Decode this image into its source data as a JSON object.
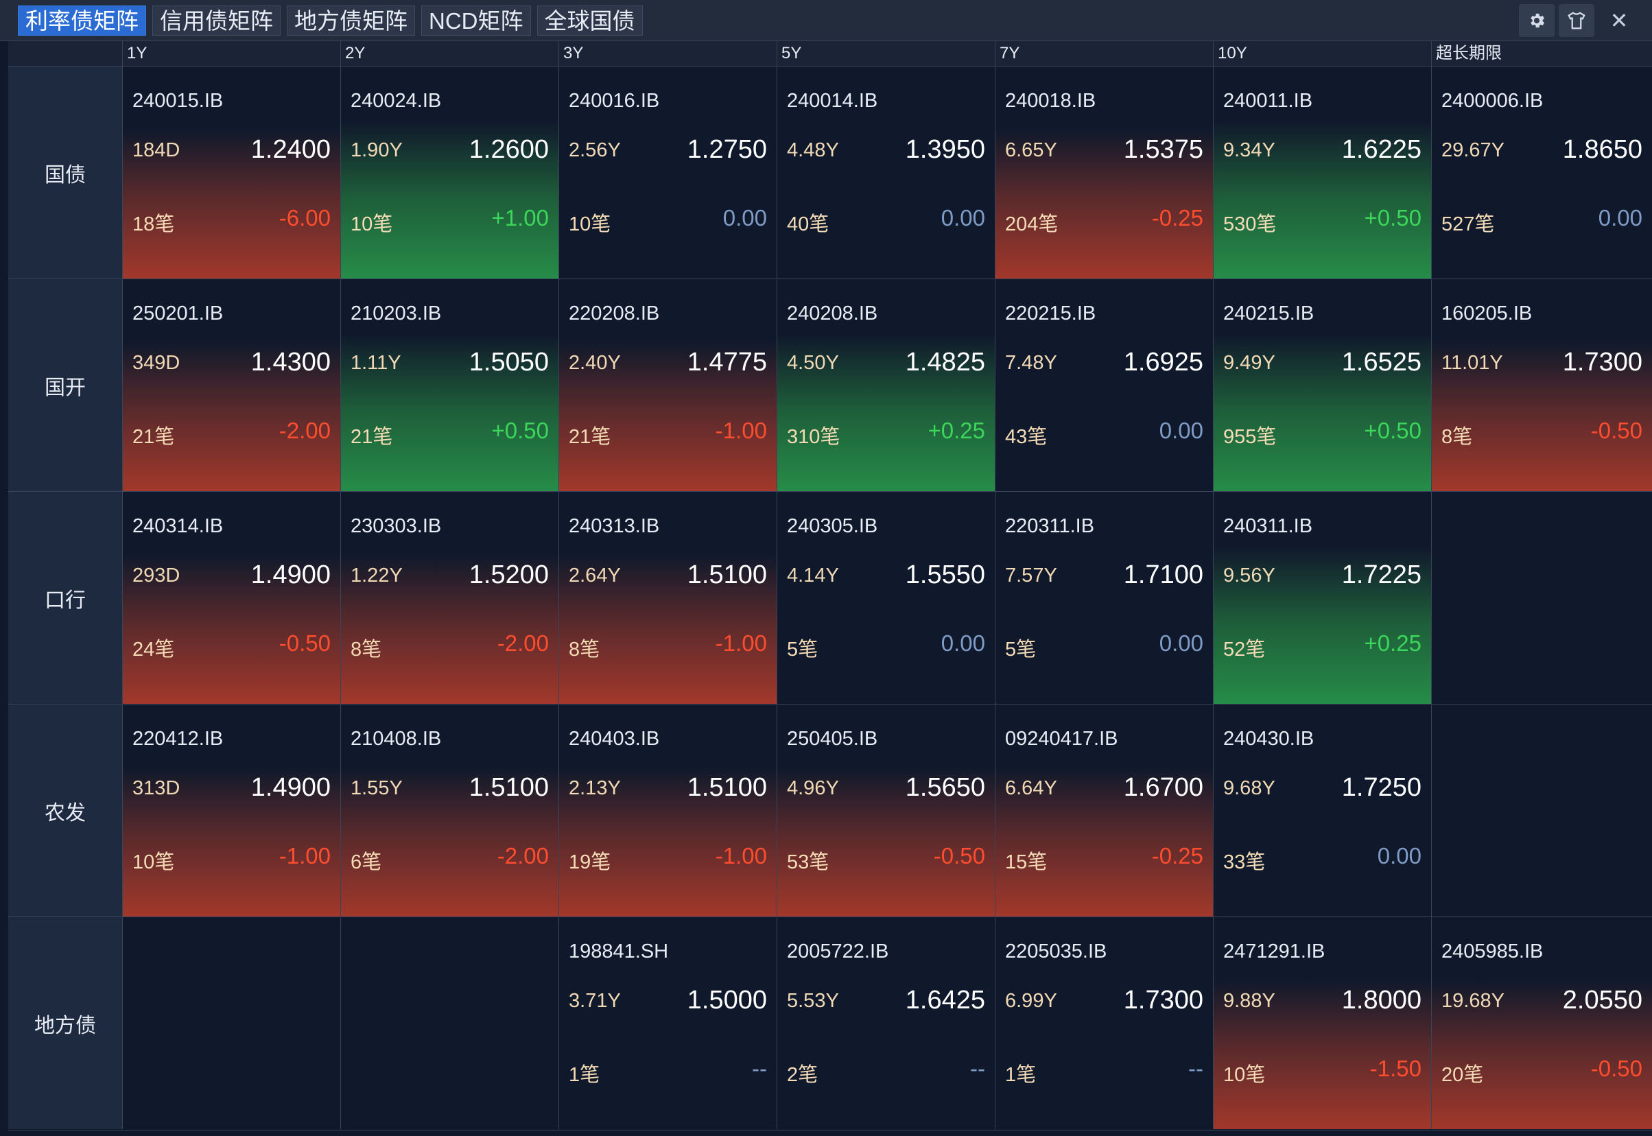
{
  "tabs": [
    {
      "label": "利率债矩阵",
      "active": true
    },
    {
      "label": "信用债矩阵",
      "active": false
    },
    {
      "label": "地方债矩阵",
      "active": false
    },
    {
      "label": "NCD矩阵",
      "active": false
    },
    {
      "label": "全球国债",
      "active": false
    }
  ],
  "window_controls": {
    "settings_icon": "gear-icon",
    "theme_icon": "shirt-icon",
    "close_icon": "close-icon",
    "close_glyph": "✕"
  },
  "columns": [
    "1Y",
    "2Y",
    "3Y",
    "5Y",
    "7Y",
    "10Y",
    "超长期限"
  ],
  "colors": {
    "accent": "#2b6cd4",
    "down": "#ff4d2e",
    "up": "#3bd65a",
    "flat": "#7f9cc7",
    "cell_red": "#a2382b",
    "cell_green": "#268c48"
  },
  "rows": [
    {
      "label": "国债",
      "cells": [
        {
          "code": "240015.IB",
          "term": "184D",
          "yield": "1.2400",
          "count": "18笔",
          "change": "-6.00",
          "trend": "red"
        },
        {
          "code": "240024.IB",
          "term": "1.90Y",
          "yield": "1.2600",
          "count": "10笔",
          "change": "+1.00",
          "trend": "green"
        },
        {
          "code": "240016.IB",
          "term": "2.56Y",
          "yield": "1.2750",
          "count": "10笔",
          "change": "0.00",
          "trend": "flat"
        },
        {
          "code": "240014.IB",
          "term": "4.48Y",
          "yield": "1.3950",
          "count": "40笔",
          "change": "0.00",
          "trend": "flat"
        },
        {
          "code": "240018.IB",
          "term": "6.65Y",
          "yield": "1.5375",
          "count": "204笔",
          "change": "-0.25",
          "trend": "red"
        },
        {
          "code": "240011.IB",
          "term": "9.34Y",
          "yield": "1.6225",
          "count": "530笔",
          "change": "+0.50",
          "trend": "green"
        },
        {
          "code": "2400006.IB",
          "term": "29.67Y",
          "yield": "1.8650",
          "count": "527笔",
          "change": "0.00",
          "trend": "flat"
        }
      ]
    },
    {
      "label": "国开",
      "cells": [
        {
          "code": "250201.IB",
          "term": "349D",
          "yield": "1.4300",
          "count": "21笔",
          "change": "-2.00",
          "trend": "red"
        },
        {
          "code": "210203.IB",
          "term": "1.11Y",
          "yield": "1.5050",
          "count": "21笔",
          "change": "+0.50",
          "trend": "green"
        },
        {
          "code": "220208.IB",
          "term": "2.40Y",
          "yield": "1.4775",
          "count": "21笔",
          "change": "-1.00",
          "trend": "red"
        },
        {
          "code": "240208.IB",
          "term": "4.50Y",
          "yield": "1.4825",
          "count": "310笔",
          "change": "+0.25",
          "trend": "green"
        },
        {
          "code": "220215.IB",
          "term": "7.48Y",
          "yield": "1.6925",
          "count": "43笔",
          "change": "0.00",
          "trend": "flat"
        },
        {
          "code": "240215.IB",
          "term": "9.49Y",
          "yield": "1.6525",
          "count": "955笔",
          "change": "+0.50",
          "trend": "green"
        },
        {
          "code": "160205.IB",
          "term": "11.01Y",
          "yield": "1.7300",
          "count": "8笔",
          "change": "-0.50",
          "trend": "red"
        }
      ]
    },
    {
      "label": "口行",
      "cells": [
        {
          "code": "240314.IB",
          "term": "293D",
          "yield": "1.4900",
          "count": "24笔",
          "change": "-0.50",
          "trend": "red"
        },
        {
          "code": "230303.IB",
          "term": "1.22Y",
          "yield": "1.5200",
          "count": "8笔",
          "change": "-2.00",
          "trend": "red"
        },
        {
          "code": "240313.IB",
          "term": "2.64Y",
          "yield": "1.5100",
          "count": "8笔",
          "change": "-1.00",
          "trend": "red"
        },
        {
          "code": "240305.IB",
          "term": "4.14Y",
          "yield": "1.5550",
          "count": "5笔",
          "change": "0.00",
          "trend": "flat"
        },
        {
          "code": "220311.IB",
          "term": "7.57Y",
          "yield": "1.7100",
          "count": "5笔",
          "change": "0.00",
          "trend": "flat"
        },
        {
          "code": "240311.IB",
          "term": "9.56Y",
          "yield": "1.7225",
          "count": "52笔",
          "change": "+0.25",
          "trend": "green"
        },
        null
      ]
    },
    {
      "label": "农发",
      "cells": [
        {
          "code": "220412.IB",
          "term": "313D",
          "yield": "1.4900",
          "count": "10笔",
          "change": "-1.00",
          "trend": "red"
        },
        {
          "code": "210408.IB",
          "term": "1.55Y",
          "yield": "1.5100",
          "count": "6笔",
          "change": "-2.00",
          "trend": "red"
        },
        {
          "code": "240403.IB",
          "term": "2.13Y",
          "yield": "1.5100",
          "count": "19笔",
          "change": "-1.00",
          "trend": "red"
        },
        {
          "code": "250405.IB",
          "term": "4.96Y",
          "yield": "1.5650",
          "count": "53笔",
          "change": "-0.50",
          "trend": "red"
        },
        {
          "code": "09240417.IB",
          "term": "6.64Y",
          "yield": "1.6700",
          "count": "15笔",
          "change": "-0.25",
          "trend": "red"
        },
        {
          "code": "240430.IB",
          "term": "9.68Y",
          "yield": "1.7250",
          "count": "33笔",
          "change": "0.00",
          "trend": "flat"
        },
        null
      ]
    },
    {
      "label": "地方债",
      "cells": [
        null,
        null,
        {
          "code": "198841.SH",
          "term": "3.71Y",
          "yield": "1.5000",
          "count": "1笔",
          "change": "--",
          "trend": "none"
        },
        {
          "code": "2005722.IB",
          "term": "5.53Y",
          "yield": "1.6425",
          "count": "2笔",
          "change": "--",
          "trend": "none"
        },
        {
          "code": "2205035.IB",
          "term": "6.99Y",
          "yield": "1.7300",
          "count": "1笔",
          "change": "--",
          "trend": "none"
        },
        {
          "code": "2471291.IB",
          "term": "9.88Y",
          "yield": "1.8000",
          "count": "10笔",
          "change": "-1.50",
          "trend": "red"
        },
        {
          "code": "2405985.IB",
          "term": "19.68Y",
          "yield": "2.0550",
          "count": "20笔",
          "change": "-0.50",
          "trend": "red"
        }
      ]
    }
  ]
}
